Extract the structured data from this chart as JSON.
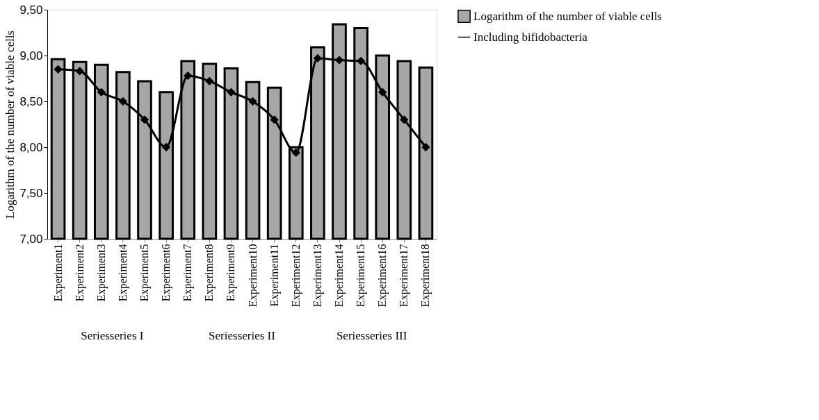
{
  "chart_data": {
    "type": "bar",
    "ylabel": "Logarithm of the number of viable cells",
    "categories": [
      "Experiment1",
      "Experiment2",
      "Experiment3",
      "Experiment4",
      "Experiment5",
      "Experiment6",
      "Experiment7",
      "Experiment8",
      "Experiment9",
      "Experiment10",
      "Experiment11",
      "Experiment12",
      "Experiment13",
      "Experiment14",
      "Experiment15",
      "Experiment16",
      "Experiment17",
      "Experiment18"
    ],
    "series": [
      {
        "name": "Logarithm of the number of viable cells",
        "color": "#a6a6a6",
        "values": [
          8.96,
          8.93,
          8.9,
          8.82,
          8.72,
          8.6,
          8.94,
          8.91,
          8.86,
          8.71,
          8.65,
          8.0,
          9.09,
          9.34,
          9.3,
          9.0,
          8.94,
          8.87
        ]
      },
      {
        "name": "Including bifidobacteria",
        "type": "line",
        "color": "#000000",
        "values": [
          8.85,
          8.83,
          8.6,
          8.5,
          8.3,
          8.0,
          8.78,
          8.72,
          8.6,
          8.5,
          8.3,
          7.94,
          8.97,
          8.95,
          8.94,
          8.6,
          8.3,
          8.0
        ]
      }
    ],
    "ylim": [
      7,
      9.5
    ],
    "yticks": [
      {
        "value": 7,
        "label": "7,00"
      },
      {
        "value": 7.5,
        "label": "7,50"
      },
      {
        "value": 8,
        "label": "8,00"
      },
      {
        "value": 8.5,
        "label": "8,50"
      },
      {
        "value": 9,
        "label": "9,00"
      },
      {
        "value": 9.5,
        "label": "9,50"
      }
    ],
    "annotations": [
      "Seriesseries I",
      "Seriesseries II",
      "Seriesseries III"
    ],
    "marker": "diamond",
    "line_style": "solid",
    "grid": false,
    "legend": "right"
  }
}
